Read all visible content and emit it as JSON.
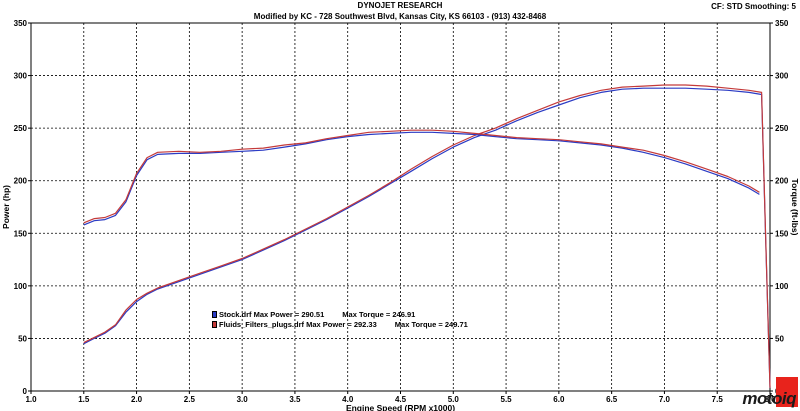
{
  "header": {
    "title": "DYNOJET RESEARCH",
    "subtitle": "Modified by KC - 728 Southwest Blvd, Kansas City, KS 66103 - (913) 432-8468",
    "settings": "CF: STD  Smoothing: 5"
  },
  "logo": {
    "text": "motoiq"
  },
  "legend": [
    {
      "file": "Stock.drf",
      "max_power_label": "Max Power = 290.51",
      "max_torque_label": "Max Torque = 246.91",
      "color": "#2b3bc4"
    },
    {
      "file": "Fluids_Filters_plugs.drf",
      "max_power_label": "Max Power = 292.33",
      "max_torque_label": "Max Torque = 249.71",
      "color": "#c43a3a"
    }
  ],
  "chart_data": {
    "type": "line",
    "xlabel": "Engine Speed (RPM x1000)",
    "ylabel_left": "Power (hp)",
    "ylabel_right": "Torque (ft-lbs)",
    "xlim": [
      1.0,
      8.0
    ],
    "ylim_left": [
      0,
      350
    ],
    "ylim_right": [
      0,
      350
    ],
    "xticks": [
      "1.0",
      "1.5",
      "2.0",
      "2.5",
      "3.0",
      "3.5",
      "4.0",
      "4.5",
      "5.0",
      "5.5",
      "6.0",
      "6.5",
      "7.0",
      "7.5",
      "8.0"
    ],
    "yticks_left": [
      "0",
      "50",
      "100",
      "150",
      "200",
      "250",
      "300",
      "350"
    ],
    "yticks_right": [
      "0",
      "50",
      "100",
      "150",
      "200",
      "250",
      "300",
      "350"
    ],
    "grid": true,
    "series": [
      {
        "name": "Stock.drf",
        "quantity": "power",
        "color": "#2b3bc4",
        "x": [
          1.5,
          1.6,
          1.7,
          1.8,
          1.9,
          2.0,
          2.1,
          2.2,
          2.4,
          2.6,
          2.8,
          3.0,
          3.2,
          3.4,
          3.6,
          3.8,
          4.0,
          4.2,
          4.4,
          4.6,
          4.8,
          5.0,
          5.2,
          5.4,
          5.6,
          5.8,
          6.0,
          6.2,
          6.4,
          6.6,
          6.8,
          7.0,
          7.2,
          7.4,
          7.6,
          7.8,
          7.92,
          7.96,
          8.0
        ],
        "y": [
          45,
          50,
          55,
          62,
          75,
          85,
          92,
          97,
          104,
          111,
          118,
          125,
          134,
          143,
          153,
          163,
          174,
          185,
          197,
          209,
          221,
          232,
          241,
          248,
          257,
          265,
          272,
          279,
          284,
          287,
          288,
          288,
          288,
          287,
          286,
          284,
          282,
          140,
          3
        ]
      },
      {
        "name": "Fluids_Filters_plugs.drf",
        "quantity": "power",
        "color": "#c43a3a",
        "x": [
          1.5,
          1.6,
          1.7,
          1.8,
          1.9,
          2.0,
          2.1,
          2.2,
          2.4,
          2.6,
          2.8,
          3.0,
          3.2,
          3.4,
          3.6,
          3.8,
          4.0,
          4.2,
          4.4,
          4.6,
          4.8,
          5.0,
          5.2,
          5.4,
          5.6,
          5.8,
          6.0,
          6.2,
          6.4,
          6.6,
          6.8,
          7.0,
          7.2,
          7.4,
          7.6,
          7.8,
          7.92,
          7.96,
          8.0
        ],
        "y": [
          46,
          51,
          56,
          63,
          77,
          87,
          93,
          98,
          105,
          112,
          119,
          126,
          135,
          144,
          154,
          164,
          175,
          186,
          198,
          211,
          223,
          234,
          243,
          250,
          259,
          267,
          275,
          281,
          286,
          289,
          290,
          291,
          291,
          290,
          288,
          286,
          284,
          142,
          3
        ]
      },
      {
        "name": "Stock.drf",
        "quantity": "torque",
        "color": "#2b3bc4",
        "x": [
          1.5,
          1.6,
          1.7,
          1.8,
          1.9,
          2.0,
          2.1,
          2.2,
          2.4,
          2.6,
          2.8,
          3.0,
          3.2,
          3.4,
          3.6,
          3.8,
          4.0,
          4.2,
          4.4,
          4.6,
          4.8,
          5.0,
          5.2,
          5.4,
          5.6,
          5.8,
          6.0,
          6.2,
          6.4,
          6.6,
          6.8,
          7.0,
          7.2,
          7.4,
          7.6,
          7.8,
          7.9
        ],
        "y": [
          158,
          162,
          163,
          167,
          180,
          205,
          220,
          225,
          226,
          226,
          227,
          228,
          229,
          232,
          235,
          239,
          242,
          244,
          245,
          246,
          246,
          245,
          244,
          242,
          240,
          239,
          238,
          236,
          234,
          231,
          227,
          222,
          216,
          209,
          202,
          193,
          187
        ]
      },
      {
        "name": "Fluids_Filters_plugs.drf",
        "quantity": "torque",
        "color": "#c43a3a",
        "x": [
          1.5,
          1.6,
          1.7,
          1.8,
          1.9,
          2.0,
          2.1,
          2.2,
          2.4,
          2.6,
          2.8,
          3.0,
          3.2,
          3.4,
          3.6,
          3.8,
          4.0,
          4.2,
          4.4,
          4.6,
          4.8,
          5.0,
          5.2,
          5.4,
          5.6,
          5.8,
          6.0,
          6.2,
          6.4,
          6.6,
          6.8,
          7.0,
          7.2,
          7.4,
          7.6,
          7.8,
          7.9
        ],
        "y": [
          160,
          164,
          165,
          169,
          182,
          207,
          222,
          227,
          228,
          227,
          228,
          230,
          231,
          234,
          236,
          240,
          243,
          246,
          247,
          248,
          248,
          247,
          245,
          243,
          241,
          240,
          239,
          237,
          235,
          232,
          229,
          224,
          218,
          211,
          204,
          195,
          189
        ]
      }
    ]
  }
}
